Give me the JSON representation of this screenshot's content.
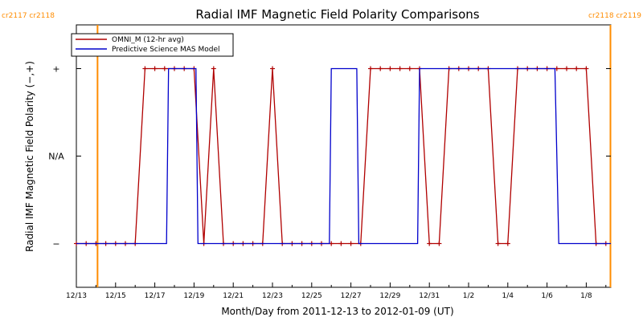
{
  "chart_data": {
    "type": "line",
    "title": "Radial IMF Magnetic Field Polarity Comparisons",
    "xlabel": "Month/Day from 2011-12-13 to 2012-01-09 (UT)",
    "ylabel": "Radial IMF Magnetic Field Polarity (−,+)",
    "x_range_days": [
      0,
      27.25
    ],
    "y_range": [
      -1.5,
      1.5
    ],
    "x_ticks": [
      {
        "day": 0,
        "label": "12/13"
      },
      {
        "day": 2,
        "label": "12/15"
      },
      {
        "day": 4,
        "label": "12/17"
      },
      {
        "day": 6,
        "label": "12/19"
      },
      {
        "day": 8,
        "label": "12/21"
      },
      {
        "day": 10,
        "label": "12/23"
      },
      {
        "day": 12,
        "label": "12/25"
      },
      {
        "day": 14,
        "label": "12/27"
      },
      {
        "day": 16,
        "label": "12/29"
      },
      {
        "day": 18,
        "label": "12/31"
      },
      {
        "day": 20,
        "label": "1/2"
      },
      {
        "day": 22,
        "label": "1/4"
      },
      {
        "day": 24,
        "label": "1/6"
      },
      {
        "day": 26,
        "label": "1/8"
      }
    ],
    "y_ticks": [
      {
        "value": 1,
        "label": "+"
      },
      {
        "value": 0,
        "label": "N/A"
      },
      {
        "value": -1,
        "label": "−"
      }
    ],
    "carrington_markers": [
      {
        "day": 1.08,
        "label": "cr2117 cr2118",
        "align": "right",
        "color": "#ff8c00"
      },
      {
        "day": 27.25,
        "label": "cr2118 cr2119",
        "align": "right",
        "color": "#ff8c00"
      }
    ],
    "legend": {
      "placement": "top-left"
    },
    "series": [
      {
        "name": "OMNI_M (12-hr avg)",
        "color": "#b00000",
        "markers": true,
        "x": [
          0,
          0.5,
          1,
          1.5,
          2,
          2.5,
          3,
          3.5,
          4,
          4.5,
          5,
          5.5,
          6,
          6.5,
          7,
          7.5,
          8,
          8.5,
          9,
          9.5,
          10,
          10.5,
          11,
          11.5,
          12,
          12.5,
          13,
          13.5,
          14,
          14.5,
          15,
          15.5,
          16,
          16.5,
          17,
          17.5,
          18,
          18.5,
          19,
          19.5,
          20,
          20.5,
          21,
          21.5,
          22,
          22.5,
          23,
          23.5,
          24,
          24.5,
          25,
          25.5,
          26,
          26.5,
          27
        ],
        "values": [
          -1,
          -1,
          -1,
          -1,
          -1,
          -1,
          -1,
          1,
          1,
          1,
          1,
          1,
          1,
          -1,
          1,
          -1,
          -1,
          -1,
          -1,
          -1,
          1,
          -1,
          -1,
          -1,
          -1,
          -1,
          -1,
          -1,
          -1,
          -1,
          1,
          1,
          1,
          1,
          1,
          1,
          -1,
          -1,
          1,
          1,
          1,
          1,
          1,
          -1,
          -1,
          1,
          1,
          1,
          1,
          1,
          1,
          1,
          1,
          -1,
          -1
        ]
      },
      {
        "name": "Predictive Science MAS Model",
        "color": "#0000cc",
        "markers": false,
        "x": [
          0,
          4.6,
          4.7,
          5.8,
          6.1,
          6.2,
          12.9,
          13.0,
          14.3,
          14.4,
          17.4,
          17.5,
          24.4,
          24.6,
          27.25
        ],
        "values": [
          -1,
          -1,
          1,
          1,
          1,
          -1,
          -1,
          1,
          1,
          -1,
          -1,
          1,
          1,
          -1,
          -1
        ]
      }
    ]
  }
}
